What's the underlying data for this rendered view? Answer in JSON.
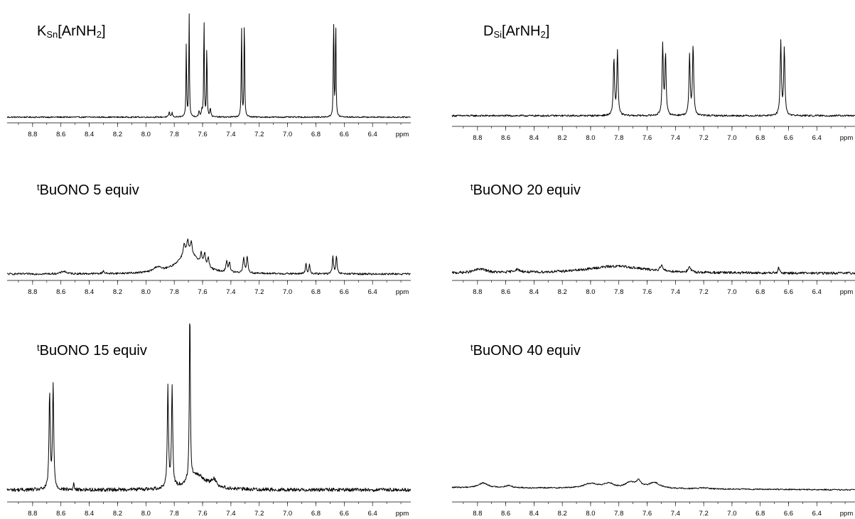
{
  "chart_data": [
    {
      "type": "line",
      "title_parts": [
        [
          "K",
          ""
        ],
        [
          "Sn",
          "sub"
        ],
        [
          "[ArNH",
          ""
        ],
        [
          "2",
          "sub"
        ],
        [
          "]",
          ""
        ]
      ],
      "x_unit": "ppm",
      "xlim": [
        8.98,
        6.13
      ],
      "x_reversed": true,
      "ticks": [
        "8.8",
        "8.6",
        "8.4",
        "8.2",
        "8.0",
        "7.8",
        "7.6",
        "7.4",
        "7.2",
        "7.0",
        "6.8",
        "6.6",
        "6.4"
      ],
      "noise": 0.006,
      "baseline_slope": 0.0,
      "peaks": [
        {
          "x": 7.835,
          "y": 0.05,
          "w": 0.004
        },
        {
          "x": 7.815,
          "y": 0.04,
          "w": 0.004
        },
        {
          "x": 7.715,
          "y": 0.7,
          "w": 0.0025
        },
        {
          "x": 7.695,
          "y": 1.0,
          "w": 0.0025
        },
        {
          "x": 7.625,
          "y": 0.05,
          "w": 0.004
        },
        {
          "x": 7.605,
          "y": 0.06,
          "w": 0.004
        },
        {
          "x": 7.59,
          "y": 0.98,
          "w": 0.0025
        },
        {
          "x": 7.57,
          "y": 0.72,
          "w": 0.0025
        },
        {
          "x": 7.545,
          "y": 0.08,
          "w": 0.004
        },
        {
          "x": 7.325,
          "y": 0.9,
          "w": 0.0025
        },
        {
          "x": 7.305,
          "y": 1.0,
          "w": 0.0025
        },
        {
          "x": 6.675,
          "y": 1.0,
          "w": 0.0025
        },
        {
          "x": 6.66,
          "y": 0.98,
          "w": 0.0025
        }
      ]
    },
    {
      "type": "line",
      "title_parts": [
        [
          "D",
          ""
        ],
        [
          "Si",
          "sub"
        ],
        [
          "[ArNH",
          ""
        ],
        [
          "2",
          "sub"
        ],
        [
          "]",
          ""
        ]
      ],
      "x_unit": "ppm",
      "xlim": [
        8.98,
        6.13
      ],
      "x_reversed": true,
      "ticks": [
        "8.8",
        "8.6",
        "8.4",
        "8.2",
        "8.0",
        "7.8",
        "7.6",
        "7.4",
        "7.2",
        "7.0",
        "6.8",
        "6.6",
        "6.4"
      ],
      "noise": 0.012,
      "baseline_slope": 0.0,
      "peaks": [
        {
          "x": 7.835,
          "y": 0.78,
          "w": 0.005
        },
        {
          "x": 7.81,
          "y": 0.88,
          "w": 0.005
        },
        {
          "x": 7.49,
          "y": 0.96,
          "w": 0.005
        },
        {
          "x": 7.47,
          "y": 0.82,
          "w": 0.005
        },
        {
          "x": 7.3,
          "y": 0.82,
          "w": 0.005
        },
        {
          "x": 7.275,
          "y": 0.96,
          "w": 0.005
        },
        {
          "x": 6.655,
          "y": 1.0,
          "w": 0.005
        },
        {
          "x": 6.63,
          "y": 0.92,
          "w": 0.005
        }
      ]
    },
    {
      "type": "line",
      "title_parts": [
        [
          "t",
          "sup"
        ],
        [
          "BuONO 5 equiv",
          ""
        ]
      ],
      "x_unit": "ppm",
      "xlim": [
        8.98,
        6.13
      ],
      "x_reversed": true,
      "ticks": [
        "8.8",
        "8.6",
        "8.4",
        "8.2",
        "8.0",
        "7.8",
        "7.6",
        "7.4",
        "7.2",
        "7.0",
        "6.8",
        "6.6",
        "6.4"
      ],
      "noise": 0.025,
      "baseline_slope": 0.0,
      "peaks": [
        {
          "x": 8.58,
          "y": 0.07,
          "w": 0.02
        },
        {
          "x": 8.3,
          "y": 0.08,
          "w": 0.006
        },
        {
          "x": 7.92,
          "y": 0.12,
          "w": 0.03
        },
        {
          "x": 7.7,
          "y": 0.55,
          "w": 0.09
        },
        {
          "x": 7.73,
          "y": 0.3,
          "w": 0.007
        },
        {
          "x": 7.705,
          "y": 0.32,
          "w": 0.007
        },
        {
          "x": 7.68,
          "y": 0.3,
          "w": 0.007
        },
        {
          "x": 7.61,
          "y": 0.28,
          "w": 0.007
        },
        {
          "x": 7.585,
          "y": 0.32,
          "w": 0.007
        },
        {
          "x": 7.56,
          "y": 0.25,
          "w": 0.007
        },
        {
          "x": 7.43,
          "y": 0.28,
          "w": 0.006
        },
        {
          "x": 7.41,
          "y": 0.26,
          "w": 0.006
        },
        {
          "x": 7.31,
          "y": 0.4,
          "w": 0.006
        },
        {
          "x": 7.285,
          "y": 0.42,
          "w": 0.006
        },
        {
          "x": 6.87,
          "y": 0.26,
          "w": 0.005
        },
        {
          "x": 6.845,
          "y": 0.24,
          "w": 0.005
        },
        {
          "x": 6.68,
          "y": 0.45,
          "w": 0.005
        },
        {
          "x": 6.655,
          "y": 0.45,
          "w": 0.005
        }
      ]
    },
    {
      "type": "line",
      "title_parts": [
        [
          "t",
          "sup"
        ],
        [
          "BuONO 20 equiv",
          ""
        ]
      ],
      "x_unit": "ppm",
      "xlim": [
        8.98,
        6.13
      ],
      "x_reversed": true,
      "ticks": [
        "8.8",
        "8.6",
        "8.4",
        "8.2",
        "8.0",
        "7.8",
        "7.6",
        "7.4",
        "7.2",
        "7.0",
        "6.8",
        "6.6",
        "6.4"
      ],
      "noise": 0.045,
      "baseline_slope": 0.0,
      "peaks": [
        {
          "x": 8.78,
          "y": 0.14,
          "w": 0.05
        },
        {
          "x": 8.52,
          "y": 0.1,
          "w": 0.03
        },
        {
          "x": 7.82,
          "y": 0.25,
          "w": 0.25
        },
        {
          "x": 7.5,
          "y": 0.2,
          "w": 0.01
        },
        {
          "x": 7.3,
          "y": 0.17,
          "w": 0.01
        },
        {
          "x": 6.67,
          "y": 0.18,
          "w": 0.006
        }
      ]
    },
    {
      "type": "line",
      "title_parts": [
        [
          "t",
          "sup"
        ],
        [
          "BuONO 15 equiv",
          ""
        ]
      ],
      "x_unit": "ppm",
      "xlim": [
        8.98,
        6.13
      ],
      "x_reversed": true,
      "ticks": [
        "8.8",
        "8.6",
        "8.4",
        "8.2",
        "8.0",
        "7.8",
        "7.6",
        "7.4",
        "7.2",
        "7.0",
        "6.8",
        "6.6",
        "6.4"
      ],
      "noise": 0.01,
      "baseline_slope": 0.0,
      "peaks": [
        {
          "x": 8.68,
          "y": 0.54,
          "w": 0.005
        },
        {
          "x": 8.655,
          "y": 0.58,
          "w": 0.005
        },
        {
          "x": 8.51,
          "y": 0.04,
          "w": 0.003
        },
        {
          "x": 7.845,
          "y": 0.56,
          "w": 0.005
        },
        {
          "x": 7.815,
          "y": 0.56,
          "w": 0.005
        },
        {
          "x": 7.69,
          "y": 0.98,
          "w": 0.004
        },
        {
          "x": 7.64,
          "y": 0.08,
          "w": 0.08
        },
        {
          "x": 7.52,
          "y": 0.04,
          "w": 0.02
        }
      ]
    },
    {
      "type": "line",
      "title_parts": [
        [
          "t",
          "sup"
        ],
        [
          "BuONO 40 equiv",
          ""
        ]
      ],
      "x_unit": "ppm",
      "xlim": [
        8.98,
        6.13
      ],
      "x_reversed": true,
      "ticks": [
        "8.8",
        "8.6",
        "8.4",
        "8.2",
        "8.0",
        "7.8",
        "7.6",
        "7.4",
        "7.2",
        "7.0",
        "6.8",
        "6.6",
        "6.4"
      ],
      "noise": 0.012,
      "baseline_slope": 0.045,
      "peaks": [
        {
          "x": 8.76,
          "y": 0.09,
          "w": 0.04
        },
        {
          "x": 8.58,
          "y": 0.04,
          "w": 0.03
        },
        {
          "x": 8.0,
          "y": 0.09,
          "w": 0.06
        },
        {
          "x": 7.87,
          "y": 0.09,
          "w": 0.04
        },
        {
          "x": 7.72,
          "y": 0.11,
          "w": 0.04
        },
        {
          "x": 7.66,
          "y": 0.12,
          "w": 0.02
        },
        {
          "x": 7.55,
          "y": 0.11,
          "w": 0.05
        },
        {
          "x": 7.2,
          "y": 0.02,
          "w": 0.04
        }
      ]
    }
  ]
}
